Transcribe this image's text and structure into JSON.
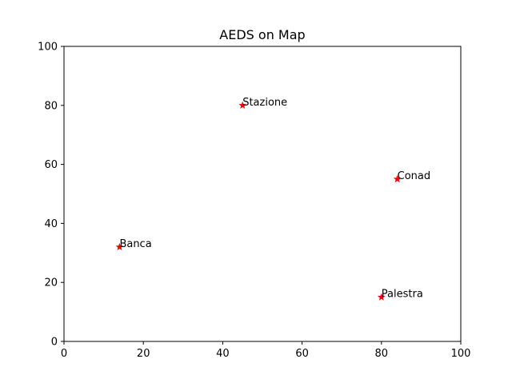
{
  "chart_data": {
    "type": "scatter",
    "title": "AEDS on Map",
    "xlabel": "",
    "ylabel": "",
    "xlim": [
      0,
      100
    ],
    "ylim": [
      0,
      100
    ],
    "x_ticks": [
      0,
      20,
      40,
      60,
      80,
      100
    ],
    "y_ticks": [
      0,
      20,
      40,
      60,
      80,
      100
    ],
    "grid": false,
    "marker": "star",
    "marker_color": "#ff0000",
    "points": [
      {
        "label": "Stazione",
        "x": 45,
        "y": 80
      },
      {
        "label": "Conad",
        "x": 84,
        "y": 55
      },
      {
        "label": "Banca",
        "x": 14,
        "y": 32
      },
      {
        "label": "Palestra",
        "x": 80,
        "y": 15
      }
    ]
  }
}
